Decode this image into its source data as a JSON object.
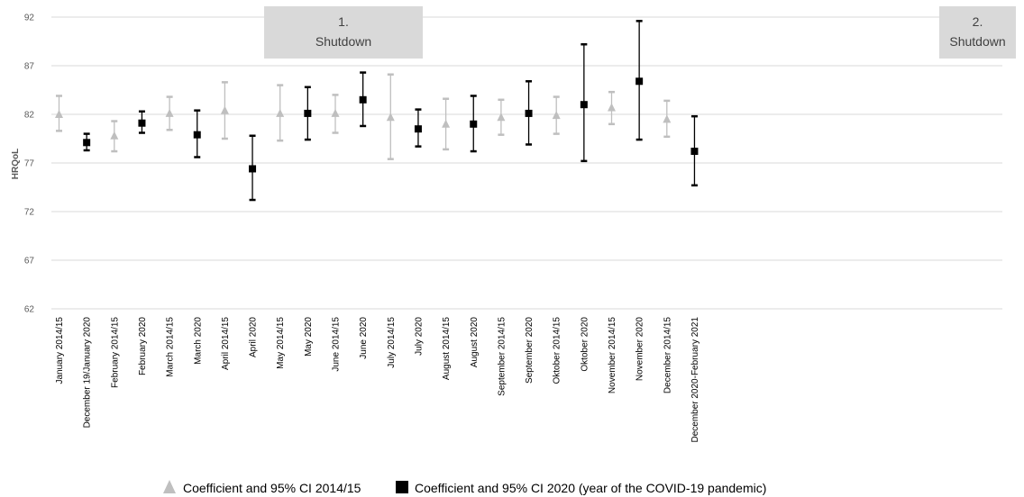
{
  "chart_data": {
    "type": "scatter",
    "ylabel": "HRQoL",
    "ylim": [
      62,
      92
    ],
    "yticks": [
      62,
      67,
      72,
      77,
      82,
      87,
      92
    ],
    "grid": true,
    "legend_position": "bottom",
    "categories": [
      "January 2014/15",
      "December 19/January 2020",
      "February 2014/15",
      "February 2020",
      "March 2014/15",
      "March 2020",
      "April 2014/15",
      "April 2020",
      "May 2014/15",
      "May 2020",
      "June 2014/15",
      "June 2020",
      "July 2014/15",
      "July 2020",
      "August 2014/15",
      "August 2020",
      "September 2014/15",
      "September 2020",
      "Oktober 2014/15",
      "Oktober 2020",
      "November 2014/15",
      "November 2020",
      "December 2014/15",
      "December 2020-February 2021"
    ],
    "series": [
      {
        "name": "Coefficient and 95% CI 2014/15",
        "marker": "triangle",
        "color": "#bfbfbf",
        "points": [
          {
            "category": "January 2014/15",
            "value": 82.0,
            "ci_low": 80.3,
            "ci_high": 83.9
          },
          {
            "category": "February 2014/15",
            "value": 79.8,
            "ci_low": 78.2,
            "ci_high": 81.3
          },
          {
            "category": "March 2014/15",
            "value": 82.1,
            "ci_low": 80.4,
            "ci_high": 83.8
          },
          {
            "category": "April 2014/15",
            "value": 82.4,
            "ci_low": 79.5,
            "ci_high": 85.3
          },
          {
            "category": "May 2014/15",
            "value": 82.1,
            "ci_low": 79.3,
            "ci_high": 85.0
          },
          {
            "category": "June 2014/15",
            "value": 82.1,
            "ci_low": 80.1,
            "ci_high": 84.0
          },
          {
            "category": "July 2014/15",
            "value": 81.7,
            "ci_low": 77.4,
            "ci_high": 86.1
          },
          {
            "category": "August 2014/15",
            "value": 81.0,
            "ci_low": 78.4,
            "ci_high": 83.6
          },
          {
            "category": "September 2014/15",
            "value": 81.7,
            "ci_low": 79.9,
            "ci_high": 83.5
          },
          {
            "category": "Oktober 2014/15",
            "value": 81.9,
            "ci_low": 80.0,
            "ci_high": 83.8
          },
          {
            "category": "November 2014/15",
            "value": 82.7,
            "ci_low": 81.0,
            "ci_high": 84.3
          },
          {
            "category": "December 2014/15",
            "value": 81.5,
            "ci_low": 79.7,
            "ci_high": 83.4
          }
        ]
      },
      {
        "name": "Coefficient and 95% CI 2020 (year of the COVID-19 pandemic)",
        "marker": "square",
        "color": "#000000",
        "points": [
          {
            "category": "December 19/January 2020",
            "value": 79.1,
            "ci_low": 78.3,
            "ci_high": 80.0
          },
          {
            "category": "February 2020",
            "value": 81.1,
            "ci_low": 80.1,
            "ci_high": 82.3
          },
          {
            "category": "March 2020",
            "value": 79.9,
            "ci_low": 77.6,
            "ci_high": 82.4
          },
          {
            "category": "April 2020",
            "value": 76.4,
            "ci_low": 73.2,
            "ci_high": 79.8
          },
          {
            "category": "May 2020",
            "value": 82.1,
            "ci_low": 79.4,
            "ci_high": 84.8
          },
          {
            "category": "June 2020",
            "value": 83.5,
            "ci_low": 80.8,
            "ci_high": 86.3
          },
          {
            "category": "July 2020",
            "value": 80.5,
            "ci_low": 78.7,
            "ci_high": 82.5
          },
          {
            "category": "August 2020",
            "value": 81.0,
            "ci_low": 78.2,
            "ci_high": 83.9
          },
          {
            "category": "September 2020",
            "value": 82.1,
            "ci_low": 78.9,
            "ci_high": 85.4
          },
          {
            "category": "Oktober 2020",
            "value": 83.0,
            "ci_low": 77.2,
            "ci_high": 89.2
          },
          {
            "category": "November 2020",
            "value": 85.4,
            "ci_low": 79.4,
            "ci_high": 91.6
          },
          {
            "category": "December 2020-February 2021",
            "value": 78.2,
            "ci_low": 74.7,
            "ci_high": 81.8
          }
        ]
      }
    ],
    "annotations": [
      {
        "name": "shutdown-1",
        "line1": "1.",
        "line2": "Shutdown",
        "color": "#d9d9d9"
      },
      {
        "name": "shutdown-2",
        "line1": "2.",
        "line2": "Shutdown",
        "color": "#d9d9d9"
      }
    ],
    "colors": {
      "grid": "#d9d9d9",
      "tick_text": "#595959"
    }
  }
}
